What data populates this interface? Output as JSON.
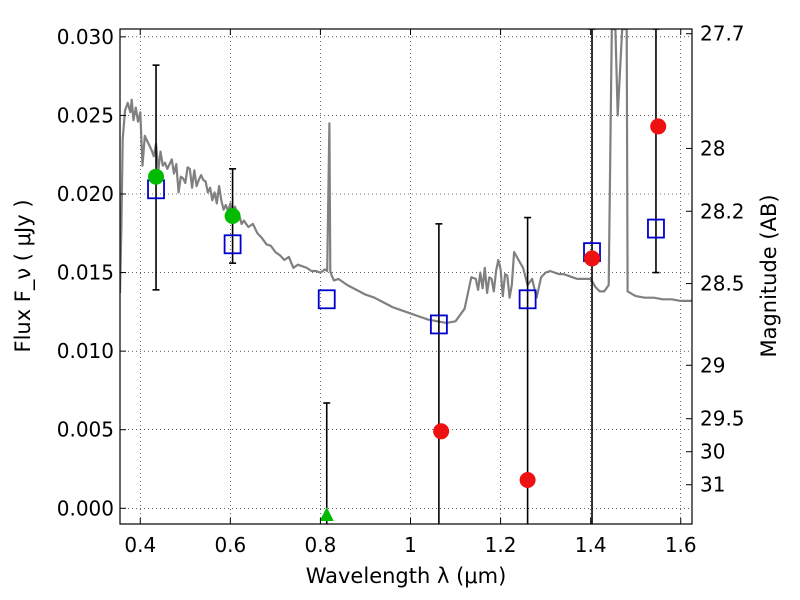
{
  "chart_data": {
    "type": "scatter",
    "x_axis": {
      "label": "Wavelength  λ (μm)",
      "range": [
        0.355,
        1.625
      ],
      "ticks": [
        0.4,
        0.6,
        0.8,
        1.0,
        1.2,
        1.4,
        1.6
      ],
      "tick_labels": [
        "0.4",
        "0.6",
        "0.8",
        "1",
        "1.2",
        "1.4",
        "1.6"
      ]
    },
    "y_axis_left": {
      "label": "Flux  F_ν  ( μJy )",
      "range": [
        -0.001,
        0.0305
      ],
      "ticks": [
        0.0,
        0.005,
        0.01,
        0.015,
        0.02,
        0.025,
        0.03
      ],
      "tick_labels": [
        "0.000",
        "0.005",
        "0.010",
        "0.015",
        "0.020",
        "0.025",
        "0.030"
      ]
    },
    "y_axis_right": {
      "label": "Magnitude (AB)",
      "ticks": [
        {
          "flux": 0.0302,
          "label": "27.7"
        },
        {
          "flux": 0.0229,
          "label": "28"
        },
        {
          "flux": 0.0189,
          "label": "28.2"
        },
        {
          "flux": 0.0143,
          "label": "28.5"
        },
        {
          "flux": 0.0091,
          "label": "29"
        },
        {
          "flux": 0.0057,
          "label": "29.5"
        },
        {
          "flux": 0.0036,
          "label": "30"
        },
        {
          "flux": 0.0015,
          "label": "31"
        }
      ]
    },
    "grid": true,
    "colors": {
      "model_line": "#808080",
      "model_points": "#0000cc",
      "detections": "#00bb00",
      "measurements": "#ee1111",
      "errorbars": "#000000"
    },
    "series": [
      {
        "kind": "model_spectrum",
        "points": [
          [
            0.355,
            0.0137
          ],
          [
            0.358,
            0.018
          ],
          [
            0.361,
            0.0235
          ],
          [
            0.366,
            0.0253
          ],
          [
            0.372,
            0.0258
          ],
          [
            0.378,
            0.0252
          ],
          [
            0.381,
            0.026
          ],
          [
            0.385,
            0.0247
          ],
          [
            0.39,
            0.0255
          ],
          [
            0.395,
            0.0246
          ],
          [
            0.4,
            0.0252
          ],
          [
            0.405,
            0.0218
          ],
          [
            0.41,
            0.0237
          ],
          [
            0.415,
            0.0234
          ],
          [
            0.42,
            0.0231
          ],
          [
            0.425,
            0.0228
          ],
          [
            0.43,
            0.0224
          ],
          [
            0.435,
            0.0232
          ],
          [
            0.44,
            0.0215
          ],
          [
            0.445,
            0.0227
          ],
          [
            0.45,
            0.0218
          ],
          [
            0.455,
            0.022
          ],
          [
            0.46,
            0.0216
          ],
          [
            0.47,
            0.0222
          ],
          [
            0.475,
            0.0213
          ],
          [
            0.48,
            0.0219
          ],
          [
            0.485,
            0.0201
          ],
          [
            0.49,
            0.0211
          ],
          [
            0.495,
            0.021
          ],
          [
            0.5,
            0.0207
          ],
          [
            0.505,
            0.0217
          ],
          [
            0.51,
            0.0216
          ],
          [
            0.515,
            0.0204
          ],
          [
            0.52,
            0.0215
          ],
          [
            0.525,
            0.0205
          ],
          [
            0.53,
            0.0209
          ],
          [
            0.535,
            0.0212
          ],
          [
            0.54,
            0.0209
          ],
          [
            0.545,
            0.0208
          ],
          [
            0.55,
            0.0201
          ],
          [
            0.555,
            0.0204
          ],
          [
            0.56,
            0.0196
          ],
          [
            0.565,
            0.0201
          ],
          [
            0.57,
            0.0194
          ],
          [
            0.575,
            0.0205
          ],
          [
            0.58,
            0.0196
          ],
          [
            0.585,
            0.019
          ],
          [
            0.59,
            0.0193
          ],
          [
            0.595,
            0.0189
          ],
          [
            0.6,
            0.0194
          ],
          [
            0.605,
            0.0186
          ],
          [
            0.61,
            0.0192
          ],
          [
            0.615,
            0.0188
          ],
          [
            0.62,
            0.0186
          ],
          [
            0.625,
            0.0181
          ],
          [
            0.63,
            0.0183
          ],
          [
            0.64,
            0.0179
          ],
          [
            0.65,
            0.0181
          ],
          [
            0.66,
            0.0175
          ],
          [
            0.67,
            0.0172
          ],
          [
            0.68,
            0.0168
          ],
          [
            0.69,
            0.0167
          ],
          [
            0.7,
            0.0163
          ],
          [
            0.71,
            0.0161
          ],
          [
            0.72,
            0.0158
          ],
          [
            0.73,
            0.016
          ],
          [
            0.74,
            0.0153
          ],
          [
            0.75,
            0.0155
          ],
          [
            0.76,
            0.0154
          ],
          [
            0.77,
            0.0153
          ],
          [
            0.78,
            0.0151
          ],
          [
            0.79,
            0.0151
          ],
          [
            0.8,
            0.015
          ],
          [
            0.805,
            0.0151
          ],
          [
            0.81,
            0.0152
          ],
          [
            0.815,
            0.0151
          ],
          [
            0.82,
            0.0245
          ],
          [
            0.822,
            0.0151
          ],
          [
            0.825,
            0.0148
          ],
          [
            0.83,
            0.0145
          ],
          [
            0.84,
            0.0146
          ],
          [
            0.85,
            0.0144
          ],
          [
            0.86,
            0.0142
          ],
          [
            0.88,
            0.0139
          ],
          [
            0.9,
            0.0136
          ],
          [
            0.92,
            0.0134
          ],
          [
            0.94,
            0.0131
          ],
          [
            0.96,
            0.0128
          ],
          [
            0.98,
            0.0126
          ],
          [
            1.0,
            0.0124
          ],
          [
            1.02,
            0.0122
          ],
          [
            1.04,
            0.012
          ],
          [
            1.06,
            0.0119
          ],
          [
            1.08,
            0.0118
          ],
          [
            1.1,
            0.0119
          ],
          [
            1.12,
            0.0127
          ],
          [
            1.135,
            0.0147
          ],
          [
            1.145,
            0.0146
          ],
          [
            1.15,
            0.0139
          ],
          [
            1.155,
            0.015
          ],
          [
            1.16,
            0.014
          ],
          [
            1.165,
            0.0153
          ],
          [
            1.17,
            0.0137
          ],
          [
            1.175,
            0.0147
          ],
          [
            1.18,
            0.0146
          ],
          [
            1.185,
            0.0138
          ],
          [
            1.19,
            0.0151
          ],
          [
            1.195,
            0.0158
          ],
          [
            1.2,
            0.0152
          ],
          [
            1.205,
            0.0135
          ],
          [
            1.21,
            0.0149
          ],
          [
            1.215,
            0.0148
          ],
          [
            1.22,
            0.0134
          ],
          [
            1.225,
            0.0142
          ],
          [
            1.23,
            0.0163
          ],
          [
            1.24,
            0.0158
          ],
          [
            1.25,
            0.0153
          ],
          [
            1.26,
            0.0142
          ],
          [
            1.27,
            0.0146
          ],
          [
            1.28,
            0.0134
          ],
          [
            1.29,
            0.0147
          ],
          [
            1.3,
            0.015
          ],
          [
            1.31,
            0.0151
          ],
          [
            1.32,
            0.015
          ],
          [
            1.33,
            0.0149
          ],
          [
            1.34,
            0.0149
          ],
          [
            1.35,
            0.0148
          ],
          [
            1.36,
            0.0147
          ],
          [
            1.37,
            0.0146
          ],
          [
            1.38,
            0.0146
          ],
          [
            1.39,
            0.0146
          ],
          [
            1.4,
            0.0146
          ],
          [
            1.41,
            0.0141
          ],
          [
            1.42,
            0.0138
          ],
          [
            1.43,
            0.0138
          ],
          [
            1.44,
            0.0142
          ],
          [
            1.447,
            0.0305
          ],
          [
            1.455,
            0.0305
          ],
          [
            1.46,
            0.025
          ],
          [
            1.47,
            0.0305
          ],
          [
            1.48,
            0.0305
          ],
          [
            1.482,
            0.0138
          ],
          [
            1.5,
            0.0135
          ],
          [
            1.52,
            0.0134
          ],
          [
            1.54,
            0.0134
          ],
          [
            1.56,
            0.0133
          ],
          [
            1.58,
            0.0133
          ],
          [
            1.6,
            0.0132
          ],
          [
            1.625,
            0.0132
          ]
        ]
      },
      {
        "kind": "model_fluxes",
        "marker": "open-square",
        "points": [
          [
            0.435,
            0.0203
          ],
          [
            0.605,
            0.0168
          ],
          [
            0.814,
            0.0133
          ],
          [
            1.063,
            0.0117
          ],
          [
            1.26,
            0.0133
          ],
          [
            1.403,
            0.0163
          ],
          [
            1.545,
            0.0178
          ]
        ]
      },
      {
        "kind": "detected_fluxes",
        "marker": "circle",
        "points": [
          [
            0.435,
            0.0211
          ],
          [
            0.605,
            0.0186
          ]
        ]
      },
      {
        "kind": "upper_limit",
        "marker": "triangle",
        "points": [
          [
            0.814,
            -0.0003
          ]
        ]
      },
      {
        "kind": "measured_fluxes",
        "marker": "circle",
        "points": [
          [
            1.068,
            0.0049
          ],
          [
            1.26,
            0.0018
          ],
          [
            1.403,
            0.0159
          ],
          [
            1.55,
            0.0243
          ]
        ]
      },
      {
        "kind": "errorbars",
        "bars": [
          {
            "x": 0.435,
            "low": 0.0139,
            "high": 0.0282
          },
          {
            "x": 0.605,
            "low": 0.0156,
            "high": 0.0216
          },
          {
            "x": 0.814,
            "low": -0.0012,
            "high": 0.0067
          },
          {
            "x": 1.063,
            "low": -0.0012,
            "high": 0.0181
          },
          {
            "x": 1.26,
            "low": -0.0012,
            "high": 0.0185
          },
          {
            "x": 1.403,
            "low": -0.0012,
            "high": 0.0305
          },
          {
            "x": 1.545,
            "low": 0.015,
            "high": 0.0305
          }
        ]
      }
    ]
  }
}
